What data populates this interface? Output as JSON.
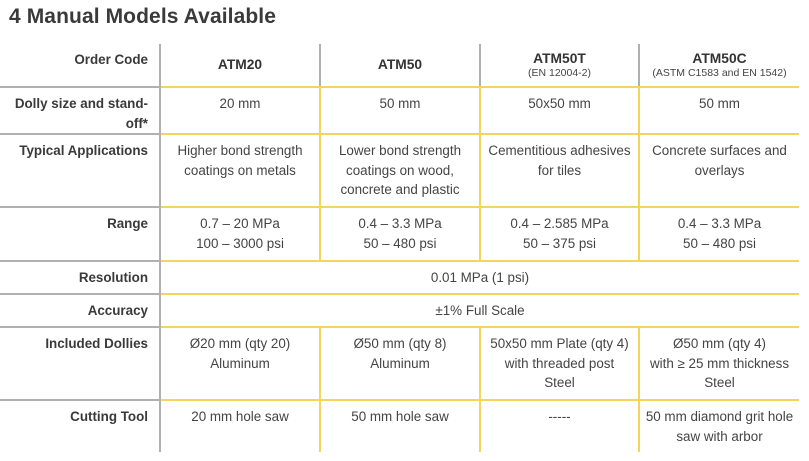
{
  "title": "4 Manual Models Available",
  "header": {
    "label": "Order Code",
    "models": [
      {
        "code": "ATM20",
        "standard": ""
      },
      {
        "code": "ATM50",
        "standard": ""
      },
      {
        "code": "ATM50T",
        "standard": "(EN 12004-2)"
      },
      {
        "code": "ATM50C",
        "standard": "(ASTM C1583 and EN 1542)"
      }
    ]
  },
  "rows": {
    "dolly_size": {
      "label": "Dolly size and stand-off*",
      "values": [
        "20 mm",
        "50 mm",
        "50x50 mm",
        "50 mm"
      ]
    },
    "applications": {
      "label": "Typical Applications",
      "values": [
        [
          "Higher bond strength",
          "coatings on metals"
        ],
        [
          "Lower bond strength",
          "coatings on wood,",
          "concrete and plastic"
        ],
        [
          "Cementitious adhesives",
          "for tiles"
        ],
        [
          "Concrete surfaces and",
          "overlays"
        ]
      ]
    },
    "range": {
      "label": "Range",
      "values": [
        [
          "0.7 – 20 MPa",
          "100 – 3000 psi"
        ],
        [
          "0.4 – 3.3 MPa",
          "50 – 480 psi"
        ],
        [
          "0.4 – 2.585 MPa",
          "50 – 375 psi"
        ],
        [
          "0.4 – 3.3 MPa",
          "50 – 480 psi"
        ]
      ]
    },
    "resolution": {
      "label": "Resolution",
      "value": "0.01 MPa (1 psi)"
    },
    "accuracy": {
      "label": "Accuracy",
      "value": "±1% Full Scale"
    },
    "dollies": {
      "label": "Included Dollies",
      "values": [
        [
          "Ø20 mm (qty 20)",
          "Aluminum"
        ],
        [
          "Ø50 mm (qty 8)",
          "Aluminum"
        ],
        [
          "50x50 mm Plate (qty 4)",
          "with threaded post",
          "Steel"
        ],
        [
          "Ø50 mm (qty 4)",
          "with ≥ 25 mm thickness",
          "Steel"
        ]
      ]
    },
    "cutting_tool": {
      "label": "Cutting Tool",
      "values": [
        [
          "20 mm hole saw"
        ],
        [
          "50 mm hole saw"
        ],
        [
          "-----"
        ],
        [
          "50 mm diamond grit hole",
          "saw with arbor"
        ]
      ]
    }
  },
  "colors": {
    "yellow_divider": "#f3d55b",
    "gray_divider": "#b0b0b0",
    "text": "#333333"
  }
}
